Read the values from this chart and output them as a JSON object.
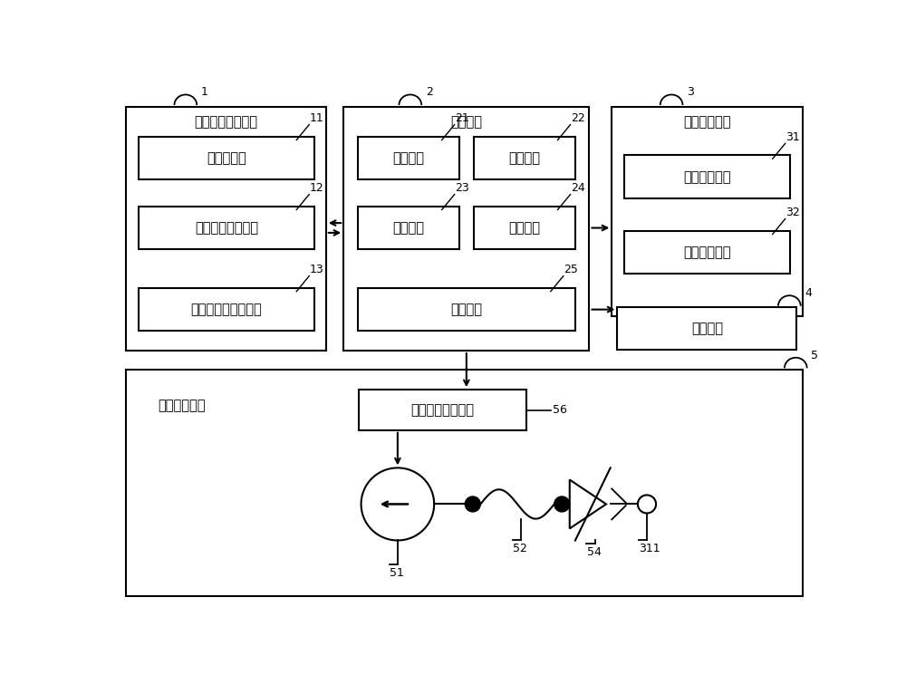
{
  "bg_color": "#ffffff",
  "lw": 1.5,
  "fs": 10.5,
  "fs_num": 9,
  "module1_title": "按键动作检测模块",
  "module1_label": "1",
  "sub11_label": "11",
  "sub11_text": "传感器单元",
  "sub12_label": "12",
  "sub12_text": "信号处理电路单元",
  "sub13_label": "13",
  "sub13_text": "传感器驱动电路单元",
  "module2_title": "控制模块",
  "module2_label": "2",
  "sub21_label": "21",
  "sub21_text": "接口单元",
  "sub22_label": "22",
  "sub22_text": "存储单元",
  "sub23_label": "23",
  "sub23_text": "控制单元",
  "sub24_label": "24",
  "sub24_text": "通讯单元",
  "sub25_label": "25",
  "sub25_text": "驱动单元",
  "module3_title": "按键面板模块",
  "module3_label": "3",
  "sub31_label": "31",
  "sub31_text": "按键标识单元",
  "sub32_label": "32",
  "sub32_text": "信息提示单元",
  "module4_text": "执行模块",
  "module4_label": "4",
  "module5_label": "5",
  "sub56_label": "56",
  "sub56_text": "电动气泵驱动电路",
  "sub51_label": "51",
  "sub52_label": "52",
  "sub54_label": "54",
  "sub311_label": "311",
  "touch_module_text": "触感发生模块"
}
